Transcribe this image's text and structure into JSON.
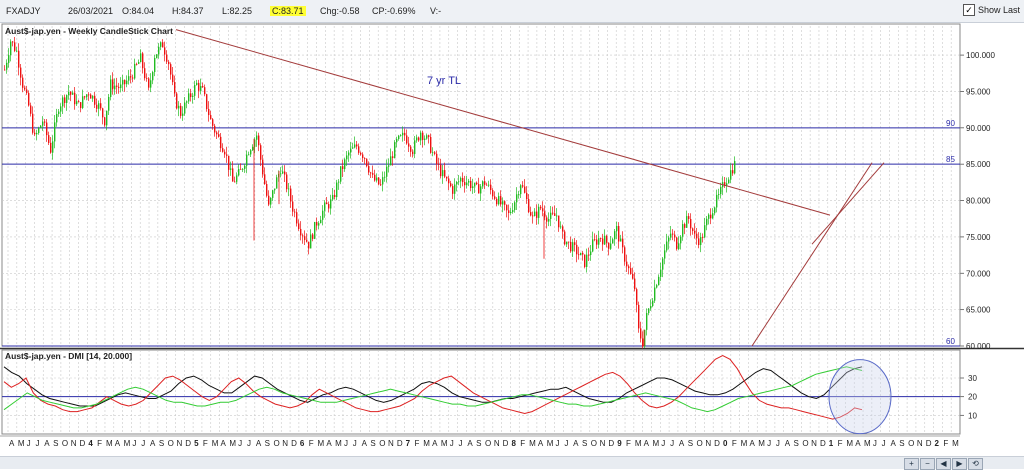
{
  "toolbar": {
    "symbol": "FXADJY",
    "date": "26/03/2021",
    "open": "O:84.04",
    "high": "H:84.37",
    "low": "L:82.25",
    "close": "C:83.71",
    "change": "Chg:-0.58",
    "change_pct": "CP:-0.69%",
    "volume": "V:-",
    "show_last_label": "Show Last",
    "show_last_checked": true
  },
  "chart_data": [
    {
      "type": "candlestick",
      "title": "Aust$-jap.yen - Weekly CandleStick Chart",
      "ylim": [
        60,
        104
      ],
      "yticks": [
        "100.000",
        "95.000",
        "90.000",
        "85.000",
        "80.000",
        "75.000",
        "70.000",
        "65.000",
        "60.000"
      ],
      "grid": true,
      "colors": {
        "up": "#22bb22",
        "down": "#ee1111",
        "trendline": "#a33b3b",
        "hline": "#2b2ba8"
      },
      "horizontal_lines": [
        {
          "label": "90",
          "value": 90
        },
        {
          "label": "85",
          "value": 85
        },
        {
          "label": "60",
          "value": 60
        }
      ],
      "annotation": "7 yr TL",
      "price_path": [
        [
          0,
          98.0
        ],
        [
          6,
          102.0
        ],
        [
          12,
          100.5
        ],
        [
          18,
          96.0
        ],
        [
          24,
          93.0
        ],
        [
          30,
          88.5
        ],
        [
          38,
          91.0
        ],
        [
          46,
          87.0
        ],
        [
          54,
          93.0
        ],
        [
          64,
          95.0
        ],
        [
          74,
          93.0
        ],
        [
          84,
          95.0
        ],
        [
          94,
          93.0
        ],
        [
          100,
          91.0
        ],
        [
          106,
          96.0
        ],
        [
          116,
          95.5
        ],
        [
          126,
          97.0
        ],
        [
          136,
          99.5
        ],
        [
          144,
          95.0
        ],
        [
          150,
          100.0
        ],
        [
          158,
          101.5
        ],
        [
          164,
          99.0
        ],
        [
          170,
          94.0
        ],
        [
          176,
          92.0
        ],
        [
          184,
          94.0
        ],
        [
          192,
          96.0
        ],
        [
          198,
          95.0
        ],
        [
          206,
          91.0
        ],
        [
          212,
          89.0
        ],
        [
          220,
          87.0
        ],
        [
          228,
          82.5
        ],
        [
          236,
          84.0
        ],
        [
          244,
          87.0
        ],
        [
          252,
          89.0
        ],
        [
          258,
          84.0
        ],
        [
          264,
          79.0
        ],
        [
          270,
          82.0
        ],
        [
          276,
          84.5
        ],
        [
          282,
          82.0
        ],
        [
          288,
          79.0
        ],
        [
          296,
          76.0
        ],
        [
          304,
          74.0
        ],
        [
          312,
          77.0
        ],
        [
          320,
          79.0
        ],
        [
          328,
          80.0
        ],
        [
          336,
          84.0
        ],
        [
          344,
          86.5
        ],
        [
          352,
          87.5
        ],
        [
          360,
          86.0
        ],
        [
          368,
          83.0
        ],
        [
          376,
          82.0
        ],
        [
          384,
          85.0
        ],
        [
          392,
          88.0
        ],
        [
          400,
          89.0
        ],
        [
          408,
          87.0
        ],
        [
          416,
          89.5
        ],
        [
          424,
          88.0
        ],
        [
          432,
          85.0
        ],
        [
          440,
          83.0
        ],
        [
          448,
          81.5
        ],
        [
          456,
          83.0
        ],
        [
          464,
          82.5
        ],
        [
          472,
          81.5
        ],
        [
          480,
          82.5
        ],
        [
          488,
          81.0
        ],
        [
          496,
          79.5
        ],
        [
          504,
          78.0
        ],
        [
          510,
          80.0
        ],
        [
          516,
          82.5
        ],
        [
          522,
          80.0
        ],
        [
          528,
          77.5
        ],
        [
          536,
          79.0
        ],
        [
          544,
          77.5
        ],
        [
          552,
          78.0
        ],
        [
          558,
          75.0
        ],
        [
          564,
          74.0
        ],
        [
          572,
          73.0
        ],
        [
          580,
          71.5
        ],
        [
          588,
          74.0
        ],
        [
          596,
          75.0
        ],
        [
          604,
          74.0
        ],
        [
          612,
          76.0
        ],
        [
          618,
          73.0
        ],
        [
          624,
          70.5
        ],
        [
          630,
          68.0
        ],
        [
          634,
          62.0
        ],
        [
          638,
          60.5
        ],
        [
          642,
          64.0
        ],
        [
          648,
          67.0
        ],
        [
          654,
          70.0
        ],
        [
          660,
          73.0
        ],
        [
          666,
          75.5
        ],
        [
          672,
          74.0
        ],
        [
          678,
          76.5
        ],
        [
          684,
          77.5
        ],
        [
          690,
          75.0
        ],
        [
          696,
          74.5
        ],
        [
          702,
          77.0
        ],
        [
          708,
          79.0
        ],
        [
          714,
          80.5
        ],
        [
          720,
          82.5
        ],
        [
          726,
          84.0
        ],
        [
          730,
          85.0
        ],
        [
          733,
          83.7
        ]
      ],
      "spikes": [
        [
          250,
          74.5
        ],
        [
          540,
          72.0
        ],
        [
          640,
          60.0
        ],
        [
          275,
          79.5
        ]
      ]
    },
    {
      "type": "line",
      "title": "Aust$-jap.yen - DMI [14, 20.000]",
      "ylim": [
        0,
        45
      ],
      "yticks": [
        "30",
        "20",
        "10"
      ],
      "threshold": 20,
      "series": [
        {
          "color": "#111111",
          "values": [
            36,
            33,
            31,
            27,
            24,
            21,
            19,
            18,
            17,
            16,
            15,
            15,
            15,
            17,
            19,
            21,
            22,
            21,
            20,
            19,
            19,
            21,
            23,
            27,
            30,
            31,
            29,
            26,
            24,
            22,
            22,
            25,
            28,
            31,
            30,
            27,
            24,
            22,
            20,
            18,
            17,
            19,
            21,
            22,
            24,
            25,
            24,
            22,
            20,
            18,
            17,
            18,
            20,
            22,
            24,
            27,
            28,
            27,
            25,
            22,
            20,
            19,
            18,
            17,
            17,
            18,
            19,
            19,
            20,
            21,
            22,
            23,
            24,
            24,
            25,
            23,
            21,
            19,
            18,
            17,
            17,
            19,
            22,
            24,
            26,
            28,
            30,
            30,
            29,
            27,
            25,
            23,
            22,
            21,
            21,
            22,
            24,
            27,
            30,
            33,
            35,
            34,
            31,
            28,
            25,
            22,
            20,
            19,
            21,
            25,
            29,
            33,
            35,
            36
          ]
        },
        {
          "color": "#dd2222",
          "values": [
            28,
            25,
            27,
            30,
            22,
            18,
            16,
            15,
            13,
            12,
            12,
            13,
            14,
            17,
            20,
            18,
            16,
            15,
            16,
            18,
            22,
            26,
            30,
            31,
            29,
            26,
            23,
            20,
            18,
            20,
            24,
            28,
            30,
            27,
            23,
            20,
            18,
            16,
            15,
            14,
            15,
            17,
            21,
            24,
            22,
            20,
            18,
            16,
            14,
            13,
            12,
            12,
            13,
            14,
            15,
            17,
            19,
            23,
            26,
            28,
            30,
            31,
            28,
            25,
            22,
            20,
            18,
            16,
            14,
            13,
            12,
            11,
            12,
            14,
            16,
            18,
            20,
            22,
            24,
            26,
            28,
            30,
            32,
            33,
            31,
            27,
            22,
            18,
            15,
            14,
            15,
            17,
            20,
            24,
            28,
            32,
            36,
            40,
            42,
            40,
            35,
            28,
            22,
            18,
            16,
            15,
            14,
            14,
            13,
            12,
            11,
            10,
            9,
            8,
            9,
            11,
            14,
            13
          ]
        },
        {
          "color": "#33cc33",
          "values": [
            13,
            16,
            19,
            22,
            20,
            18,
            17,
            16,
            15,
            14,
            14,
            15,
            16,
            18,
            20,
            22,
            24,
            25,
            24,
            22,
            20,
            18,
            17,
            17,
            16,
            15,
            15,
            16,
            17,
            17,
            18,
            20,
            22,
            24,
            25,
            24,
            22,
            21,
            20,
            19,
            18,
            17,
            17,
            17,
            18,
            19,
            20,
            21,
            22,
            23,
            24,
            23,
            22,
            21,
            20,
            19,
            18,
            17,
            16,
            16,
            15,
            15,
            16,
            17,
            18,
            19,
            20,
            21,
            21,
            20,
            19,
            18,
            17,
            16,
            16,
            15,
            15,
            16,
            17,
            18,
            19,
            20,
            21,
            22,
            21,
            20,
            19,
            18,
            16,
            14,
            13,
            12,
            13,
            15,
            17,
            19,
            20,
            21,
            22,
            23,
            24,
            25,
            26,
            28,
            30,
            32,
            33,
            34,
            35,
            36,
            35,
            34
          ]
        }
      ],
      "highlight": "ellipse-current-period"
    }
  ],
  "x_axis": {
    "labels": [
      "A",
      "M",
      "J",
      "J",
      "A",
      "S",
      "O",
      "N",
      "D",
      "4",
      "F",
      "M",
      "A",
      "M",
      "J",
      "J",
      "A",
      "S",
      "O",
      "N",
      "D",
      "5",
      "F",
      "M",
      "A",
      "M",
      "J",
      "J",
      "A",
      "S",
      "O",
      "N",
      "D",
      "6",
      "F",
      "M",
      "A",
      "M",
      "J",
      "J",
      "A",
      "S",
      "O",
      "N",
      "D",
      "7",
      "F",
      "M",
      "A",
      "M",
      "J",
      "J",
      "A",
      "S",
      "O",
      "N",
      "D",
      "8",
      "F",
      "M",
      "A",
      "M",
      "J",
      "J",
      "A",
      "S",
      "O",
      "N",
      "D",
      "9",
      "F",
      "M",
      "A",
      "M",
      "J",
      "J",
      "A",
      "S",
      "O",
      "N",
      "D",
      "0",
      "F",
      "M",
      "A",
      "M",
      "J",
      "J",
      "A",
      "S",
      "O",
      "N",
      "D",
      "1",
      "F",
      "M",
      "A",
      "M",
      "J",
      "J",
      "A",
      "S",
      "O",
      "N",
      "D",
      "2",
      "F",
      "M"
    ]
  }
}
